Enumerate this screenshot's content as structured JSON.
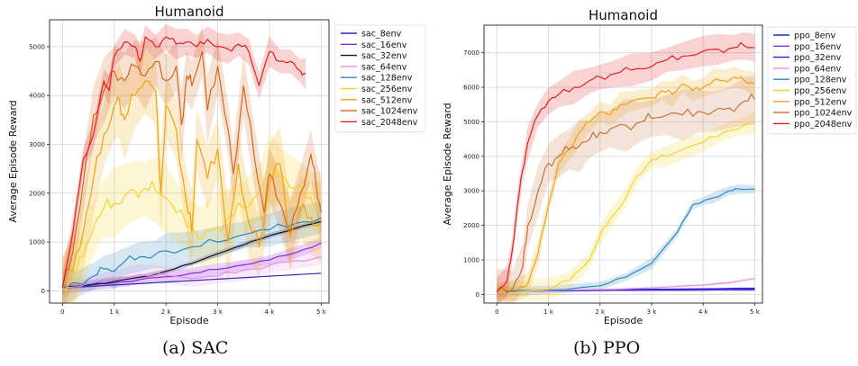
{
  "chart_data": [
    {
      "type": "line",
      "title": "Humanoid",
      "xlabel": "Episode",
      "ylabel": "Average Episode Reward",
      "caption": "(a) SAC",
      "xlim": [
        -250,
        5150
      ],
      "ylim": [
        -250,
        5550
      ],
      "x_ticks": [
        0,
        1000,
        2000,
        3000,
        4000,
        5000
      ],
      "x_tick_labels": [
        "0",
        "1 k",
        "2 k",
        "3 k",
        "4 k",
        "5 k"
      ],
      "y_ticks": [
        0,
        1000,
        2000,
        3000,
        4000,
        5000
      ],
      "y_tick_labels": [
        "0",
        "1000",
        "2000",
        "3000",
        "4000",
        "5000"
      ],
      "grid": true,
      "legend": "outside-right",
      "series": [
        {
          "name": "sac_8env",
          "color": "#2b2bb8",
          "band": 0,
          "x": [
            0,
            500,
            1000,
            1500,
            2000,
            2500,
            3000,
            3500,
            4000,
            4500,
            5000
          ],
          "y": [
            60,
            90,
            120,
            150,
            180,
            210,
            240,
            270,
            300,
            330,
            360
          ]
        },
        {
          "name": "sac_16env",
          "color": "#8a2be2",
          "band": 120,
          "x": [
            0,
            500,
            1000,
            1500,
            2000,
            2500,
            3000,
            3500,
            4000,
            4500,
            5000
          ],
          "y": [
            60,
            110,
            170,
            230,
            290,
            360,
            440,
            530,
            630,
            780,
            980
          ]
        },
        {
          "name": "sac_32env",
          "color": "#101030",
          "band": 60,
          "x": [
            0,
            500,
            1000,
            1500,
            2000,
            2500,
            3000,
            3500,
            4000,
            4500,
            5000
          ],
          "y": [
            60,
            120,
            190,
            280,
            400,
            560,
            760,
            940,
            1130,
            1280,
            1420
          ]
        },
        {
          "name": "sac_64env",
          "color": "#e58fe5",
          "band": 200,
          "x": [
            0,
            500,
            1000,
            1500,
            2000,
            2500,
            3000,
            3500,
            4000,
            4500,
            5000
          ],
          "y": [
            60,
            160,
            260,
            330,
            320,
            250,
            300,
            420,
            520,
            620,
            700
          ]
        },
        {
          "name": "sac_128env",
          "color": "#2e86c1",
          "band": 350,
          "x": [
            0,
            300,
            600,
            800,
            1000,
            1200,
            1500,
            1800,
            2000,
            2500,
            3000,
            3500,
            4000,
            4500,
            5000
          ],
          "y": [
            60,
            150,
            300,
            450,
            400,
            600,
            700,
            750,
            820,
            900,
            1000,
            1150,
            1250,
            1380,
            1500
          ]
        },
        {
          "name": "sac_256env",
          "color": "#f5d22e",
          "band": 700,
          "x": [
            0,
            200,
            400,
            600,
            800,
            1000,
            1200,
            1400,
            1600,
            1800,
            2000,
            2200,
            2500,
            2700,
            3000,
            3200,
            3500,
            3800,
            4000,
            4200,
            4500,
            4800,
            5000
          ],
          "y": [
            60,
            250,
            700,
            1300,
            1700,
            1800,
            1950,
            2050,
            2100,
            2050,
            1900,
            1600,
            1300,
            1100,
            1300,
            1500,
            1700,
            2000,
            2450,
            2400,
            2100,
            1900,
            1700
          ]
        },
        {
          "name": "sac_512env",
          "color": "#f1a30f",
          "band": 800,
          "x": [
            0,
            200,
            400,
            600,
            800,
            1000,
            1100,
            1200,
            1400,
            1600,
            1800,
            1900,
            2000,
            2200,
            2400,
            2500,
            2600,
            2800,
            3000,
            3200,
            3400,
            3600,
            3800,
            4000,
            4200,
            4400,
            4600,
            4800,
            5000
          ],
          "y": [
            60,
            400,
            1200,
            2300,
            3200,
            3800,
            3900,
            3500,
            4000,
            4300,
            4100,
            2000,
            3800,
            3300,
            1800,
            1200,
            3100,
            2300,
            2900,
            1000,
            2600,
            1400,
            900,
            2200,
            2600,
            1100,
            1700,
            1500,
            1400
          ]
        },
        {
          "name": "sac_1024env",
          "color": "#d2691e",
          "band": 650,
          "x": [
            0,
            200,
            400,
            600,
            800,
            1000,
            1200,
            1400,
            1600,
            1800,
            2000,
            2200,
            2300,
            2400,
            2500,
            2700,
            2800,
            3000,
            3200,
            3300,
            3500,
            3700,
            3900,
            4000,
            4200,
            4400,
            4600,
            4800,
            4900,
            5000
          ],
          "y": [
            60,
            800,
            2200,
            3600,
            4100,
            4500,
            4300,
            4600,
            4400,
            4700,
            4300,
            4600,
            3400,
            4400,
            4200,
            4900,
            3700,
            4600,
            3300,
            2400,
            4200,
            2800,
            1600,
            2400,
            1800,
            1200,
            2000,
            2800,
            2200,
            1600
          ]
        },
        {
          "name": "sac_2048env",
          "color": "#e32020",
          "band": 300,
          "x": [
            0,
            200,
            400,
            600,
            800,
            900,
            1000,
            1200,
            1400,
            1500,
            1600,
            1800,
            2000,
            2200,
            2400,
            2600,
            2800,
            3000,
            3200,
            3400,
            3600,
            3800,
            4000,
            4200,
            4400,
            4600,
            4700
          ],
          "y": [
            60,
            1200,
            2700,
            3200,
            4300,
            4100,
            4800,
            5100,
            5000,
            4700,
            5200,
            5000,
            5200,
            5050,
            5100,
            5000,
            5150,
            5000,
            4950,
            5050,
            4900,
            4200,
            4900,
            4700,
            4700,
            4500,
            4450
          ]
        }
      ]
    },
    {
      "type": "line",
      "title": "Humanoid",
      "xlabel": "Episode",
      "ylabel": "Average Episode Reward",
      "caption": "(b) PPO",
      "xlim": [
        -250,
        5150
      ],
      "ylim": [
        -250,
        7800
      ],
      "x_ticks": [
        0,
        1000,
        2000,
        3000,
        4000,
        5000
      ],
      "x_tick_labels": [
        "0",
        "1 k",
        "2 k",
        "3 k",
        "4 k",
        "5 k"
      ],
      "y_ticks": [
        0,
        1000,
        2000,
        3000,
        4000,
        5000,
        6000,
        7000
      ],
      "y_tick_labels": [
        "0",
        "1000",
        "2000",
        "3000",
        "4000",
        "5000",
        "6000",
        "7000"
      ],
      "grid": true,
      "legend": "outside-right",
      "series": [
        {
          "name": "ppo_8env",
          "color": "#2b2bb8",
          "band": 20,
          "x": [
            0,
            1000,
            2000,
            3000,
            4000,
            5000
          ],
          "y": [
            80,
            100,
            110,
            120,
            125,
            130
          ]
        },
        {
          "name": "ppo_16env",
          "color": "#8a2be2",
          "band": 20,
          "x": [
            0,
            1000,
            2000,
            3000,
            4000,
            5000
          ],
          "y": [
            80,
            105,
            120,
            135,
            145,
            155
          ]
        },
        {
          "name": "ppo_32env",
          "color": "#1f1fe0",
          "band": 20,
          "x": [
            0,
            1000,
            2000,
            3000,
            4000,
            5000
          ],
          "y": [
            80,
            110,
            130,
            150,
            165,
            180
          ]
        },
        {
          "name": "ppo_64env",
          "color": "#e58fe5",
          "band": 40,
          "x": [
            0,
            1000,
            2000,
            3000,
            4000,
            4500,
            5000
          ],
          "y": [
            80,
            110,
            140,
            190,
            270,
            340,
            460
          ]
        },
        {
          "name": "ppo_128env",
          "color": "#2e86c1",
          "band": 150,
          "x": [
            0,
            1000,
            2000,
            2500,
            3000,
            3500,
            3800,
            4000,
            4200,
            4500,
            4700,
            5000
          ],
          "y": [
            80,
            130,
            250,
            500,
            900,
            1800,
            2600,
            2700,
            2800,
            3000,
            3050,
            3050
          ]
        },
        {
          "name": "ppo_256env",
          "color": "#f5d22e",
          "band": 300,
          "x": [
            0,
            1000,
            1400,
            1800,
            2000,
            2200,
            2500,
            2700,
            3000,
            3300,
            3600,
            4000,
            4400,
            4800,
            5000
          ],
          "y": [
            80,
            150,
            400,
            1000,
            1700,
            2200,
            2800,
            3400,
            3900,
            4000,
            4200,
            4400,
            4700,
            4900,
            4950
          ]
        },
        {
          "name": "ppo_512env",
          "color": "#f1a30f",
          "band": 350,
          "x": [
            0,
            400,
            600,
            800,
            1000,
            1200,
            1400,
            1600,
            1800,
            2000,
            2200,
            2400,
            2600,
            3000,
            3200,
            3400,
            3600,
            3800,
            4000,
            4200,
            4400,
            4600,
            4800,
            5000
          ],
          "y": [
            80,
            120,
            300,
            1200,
            2600,
            3800,
            4200,
            4700,
            5000,
            5300,
            5200,
            5500,
            5600,
            5700,
            5900,
            5800,
            6100,
            5900,
            6000,
            6200,
            6200,
            6300,
            6200,
            6100
          ]
        },
        {
          "name": "ppo_1024env",
          "color": "#c8713a",
          "band": 700,
          "x": [
            0,
            300,
            500,
            600,
            800,
            1000,
            1200,
            1400,
            1600,
            1800,
            2000,
            2200,
            2500,
            2800,
            3000,
            3300,
            3600,
            3900,
            4200,
            4500,
            4800,
            5000
          ],
          "y": [
            80,
            150,
            800,
            2000,
            3000,
            3800,
            4000,
            4200,
            4300,
            4500,
            4700,
            4800,
            4900,
            5000,
            5100,
            5200,
            5200,
            5300,
            5300,
            5400,
            5600,
            5650
          ]
        },
        {
          "name": "ppo_2048env",
          "color": "#e32020",
          "band": 450,
          "x": [
            0,
            200,
            300,
            400,
            500,
            600,
            800,
            1000,
            1200,
            1500,
            1800,
            2000,
            2300,
            2600,
            3000,
            3300,
            3600,
            4000,
            4300,
            4600,
            4800,
            5000
          ],
          "y": [
            80,
            400,
            1300,
            2600,
            3600,
            4400,
            5200,
            5600,
            5800,
            6000,
            6200,
            6300,
            6400,
            6500,
            6600,
            6800,
            6900,
            7050,
            7100,
            7150,
            7200,
            7150
          ]
        }
      ]
    }
  ]
}
